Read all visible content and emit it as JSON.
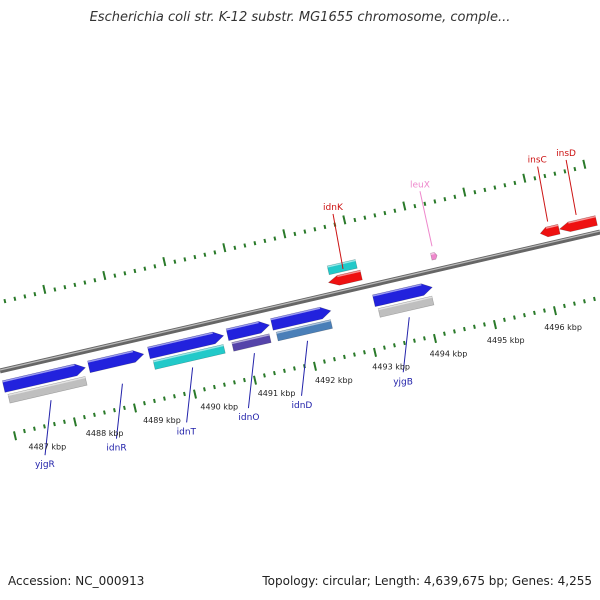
{
  "title": "Escherichia coli str. K-12 substr. MG1655 chromosome, comple...",
  "footer": {
    "accession": "Accession: NC_000913",
    "summary": "Topology: circular; Length: 4,639,675 bp; Genes: 4,255"
  },
  "colors": {
    "forward_gene": "#2222dd",
    "reverse_gene": "#ee1111",
    "cds_cyan": "#22cccc",
    "cds_gray": "#bbbbbb",
    "ruler_green": "#2a7a2a",
    "backbone": "#888888",
    "label_forward": "#2222aa",
    "label_reverse": "#cc1111",
    "label_pseudo": "#ee88cc"
  },
  "axis": {
    "bottom_ticks": [
      "4487 kbp",
      "4488 kbp",
      "4489 kbp",
      "4490 kbp",
      "4491 kbp",
      "4492 kbp",
      "4493 kbp",
      "4494 kbp",
      "4495 kbp",
      "4496 kbp"
    ]
  },
  "genes": [
    {
      "label": "yjgR",
      "strand": "forward",
      "row": "outer",
      "start": 0.0,
      "end": 0.14,
      "sub": "gray"
    },
    {
      "label": "idnR",
      "strand": "forward",
      "row": "outer",
      "start": 0.142,
      "end": 0.236,
      "sub": "none"
    },
    {
      "label": "idnT",
      "strand": "forward",
      "row": "outer",
      "start": 0.242,
      "end": 0.37,
      "sub": "cyan"
    },
    {
      "label": "idnO",
      "strand": "forward",
      "row": "outer",
      "start": 0.373,
      "end": 0.445,
      "sub": "purple"
    },
    {
      "label": "idnD",
      "strand": "forward",
      "row": "outer",
      "start": 0.447,
      "end": 0.548,
      "sub": "steel"
    },
    {
      "label": "idnK",
      "strand": "reverse",
      "row": "inner",
      "start": 0.552,
      "end": 0.608,
      "sub": "cyan"
    },
    {
      "label": "yjgB",
      "strand": "forward",
      "row": "outer",
      "start": 0.617,
      "end": 0.717,
      "sub": "gray"
    },
    {
      "label": "leuX",
      "strand": "reverse",
      "row": "tiny",
      "start": 0.724,
      "end": 0.734,
      "sub": "none"
    },
    {
      "label": "insC",
      "strand": "reverse",
      "row": "inner",
      "start": 0.905,
      "end": 0.937,
      "sub": "none"
    },
    {
      "label": "insD",
      "strand": "reverse",
      "row": "inner",
      "start": 0.937,
      "end": 1.0,
      "sub": "none"
    }
  ]
}
